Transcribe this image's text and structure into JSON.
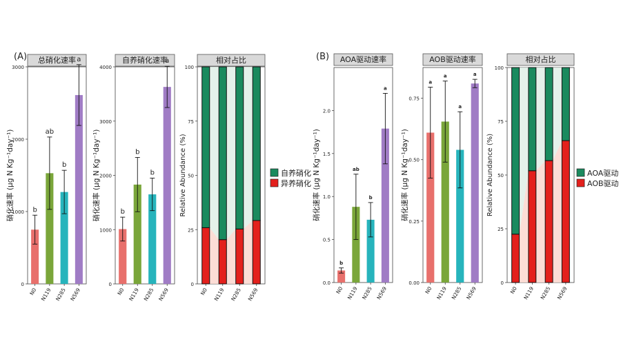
{
  "panel_labels": {
    "A": "(A)",
    "B": "(B)"
  },
  "legend_A": {
    "items": [
      {
        "label": "自养硝化",
        "color": "#1a8a5e"
      },
      {
        "label": "异养硝化",
        "color": "#e3201c"
      }
    ]
  },
  "legend_B": {
    "items": [
      {
        "label": "AOA驱动",
        "color": "#1a8a5e"
      },
      {
        "label": "AOB驱动",
        "color": "#e3201c"
      }
    ]
  },
  "chart_data": [
    {
      "type": "bar",
      "title": "总硝化速率",
      "ylabel": "硝化速率 (μg N Kg⁻¹day⁻¹)",
      "categories": [
        "N0",
        "N119",
        "N285",
        "N569"
      ],
      "values": [
        750,
        1530,
        1270,
        2610
      ],
      "errors": [
        200,
        500,
        300,
        420
      ],
      "letters": [
        "b",
        "ab",
        "b",
        "a"
      ],
      "colors": [
        "#e8706c",
        "#7aa63a",
        "#27b4bc",
        "#a07cc5"
      ],
      "ylim": [
        0,
        3000
      ],
      "yticks": [
        0,
        1000,
        2000,
        3000
      ],
      "yticklabels": [
        "0",
        "1000",
        "2000",
        "3000"
      ]
    },
    {
      "type": "bar",
      "title": "自养硝化速率",
      "ylabel": "硝化速率 (μg N Kg⁻¹day⁻¹)",
      "categories": [
        "N0",
        "N119",
        "N285",
        "N569"
      ],
      "values": [
        1010,
        1830,
        1650,
        3630
      ],
      "errors": [
        220,
        500,
        300,
        380
      ],
      "letters": [
        "b",
        "b",
        "b",
        "a"
      ],
      "colors": [
        "#e8706c",
        "#7aa63a",
        "#27b4bc",
        "#a07cc5"
      ],
      "ylim": [
        0,
        4000
      ],
      "yticks": [
        0,
        1000,
        2000,
        3000,
        4000
      ],
      "yticklabels": [
        "0",
        "1000",
        "2000",
        "3000",
        "4000"
      ]
    },
    {
      "type": "stacked_bar",
      "title": "相对占比",
      "ylabel": "Relative Abundance (%)",
      "categories": [
        "N0",
        "N119",
        "N285",
        "N569"
      ],
      "series": [
        {
          "name": "异养硝化",
          "values": [
            25.9,
            20.4,
            25.3,
            29.2
          ],
          "color": "#e3201c"
        },
        {
          "name": "自养硝化",
          "values": [
            74.1,
            79.6,
            74.7,
            70.8
          ],
          "color": "#1a8a5e"
        }
      ],
      "ylim": [
        0,
        100
      ],
      "yticks": [
        0,
        25,
        50,
        75,
        100
      ],
      "yticklabels": [
        "0",
        "25",
        "50",
        "75",
        "100"
      ]
    },
    {
      "type": "bar",
      "title": "AOA驱动速率",
      "ylabel": "硝化速率 (μg N Kg⁻¹day⁻¹)",
      "categories": [
        "N0",
        "N119",
        "N285",
        "N569"
      ],
      "values": [
        0.14,
        0.88,
        0.73,
        1.79
      ],
      "errors": [
        0.03,
        0.38,
        0.2,
        0.41
      ],
      "letters": [
        "b",
        "ab",
        "b",
        "a"
      ],
      "colors": [
        "#e8706c",
        "#7aa63a",
        "#27b4bc",
        "#a07cc5"
      ],
      "ylim": [
        0,
        2.5
      ],
      "yticks": [
        0,
        0.5,
        1.0,
        1.5,
        2.0
      ],
      "yticklabels": [
        "0.0",
        "0.5",
        "1.0",
        "1.5",
        "2.0"
      ]
    },
    {
      "type": "bar",
      "title": "AOB驱动速率",
      "ylabel": "硝化速率 (μg N Kg⁻¹day⁻¹)",
      "categories": [
        "N0",
        "N119",
        "N285",
        "N569"
      ],
      "values": [
        0.61,
        0.655,
        0.54,
        0.81
      ],
      "errors": [
        0.185,
        0.165,
        0.155,
        0.017
      ],
      "letters": [
        "a",
        "a",
        "a",
        "a"
      ],
      "colors": [
        "#e8706c",
        "#7aa63a",
        "#27b4bc",
        "#a07cc5"
      ],
      "ylim": [
        0,
        0.875
      ],
      "yticks": [
        0,
        0.25,
        0.5,
        0.75
      ],
      "yticklabels": [
        "0.00",
        "0.25",
        "0.50",
        "0.75"
      ]
    },
    {
      "type": "stacked_bar",
      "title": "相对占比",
      "ylabel": "Relative Abundance (%)",
      "categories": [
        "N0",
        "N119",
        "N285",
        "N569"
      ],
      "series": [
        {
          "name": "AOB驱动",
          "values": [
            22.5,
            52.0,
            56.7,
            66.0
          ],
          "color": "#e3201c"
        },
        {
          "name": "AOA驱动",
          "values": [
            77.5,
            48.0,
            43.3,
            34.0
          ],
          "color": "#1a8a5e"
        }
      ],
      "ylim": [
        0,
        100
      ],
      "yticks": [
        0,
        25,
        50,
        75,
        100
      ],
      "yticklabels": [
        "0",
        "25",
        "50",
        "75",
        "100"
      ]
    }
  ]
}
